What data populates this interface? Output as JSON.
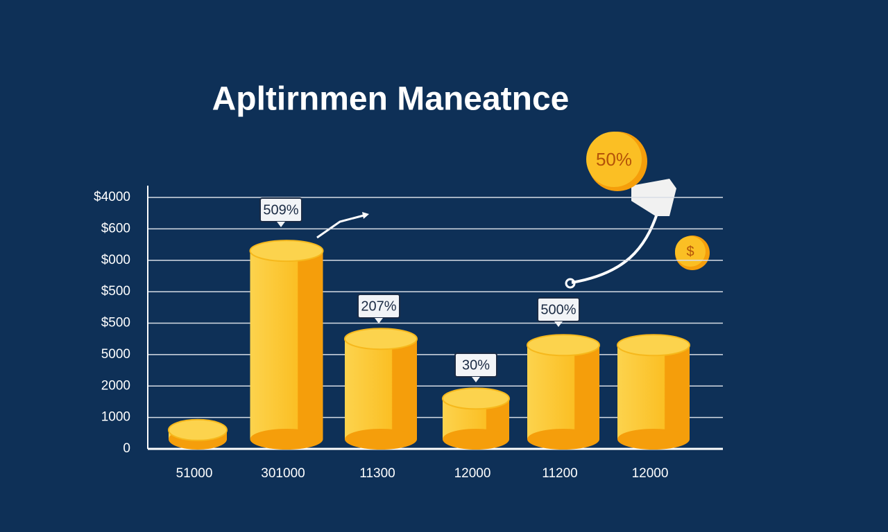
{
  "chart_data": {
    "type": "bar",
    "title": "Apltirnmen Maneatnce",
    "categories": [
      "51000",
      "301000",
      "11300",
      "12000",
      "11200",
      "12000"
    ],
    "values": [
      0.6,
      6.3,
      3.5,
      1.6,
      3.3,
      3.3
    ],
    "color": "#fbbf24",
    "ylim": [
      0,
      8
    ],
    "yticks": [
      0,
      {
        "value": 1,
        "label": "1000"
      },
      {
        "value": 2,
        "label": "2000"
      },
      {
        "value": 3,
        "label": "5000"
      },
      {
        "value": 4,
        "label": "$500"
      },
      {
        "value": 5,
        "label": "$500"
      },
      {
        "value": 6,
        "label": "$000"
      },
      {
        "value": 7,
        "label": "$600"
      },
      {
        "value": 8,
        "label": "$4000"
      }
    ],
    "grid": true,
    "callouts": [
      "509%",
      "207%",
      "30%",
      "500%"
    ],
    "coin_labels": [
      "50%",
      "$"
    ]
  }
}
